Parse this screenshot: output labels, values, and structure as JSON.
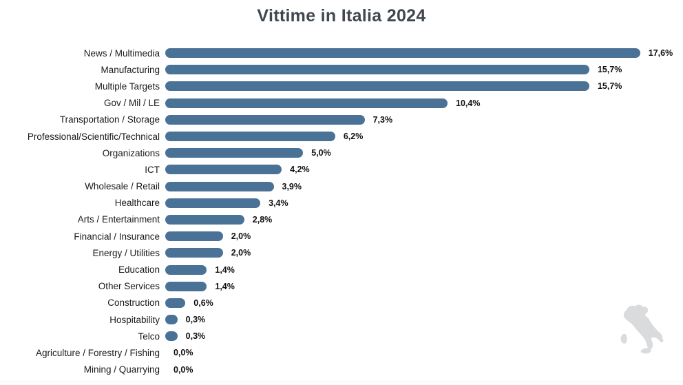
{
  "title": "Vittime in Italia 2024",
  "chart_data": {
    "type": "bar",
    "orientation": "horizontal",
    "title": "Vittime in Italia 2024",
    "categories": [
      "News / Multimedia",
      "Manufacturing",
      "Multiple Targets",
      "Gov / Mil / LE",
      "Transportation / Storage",
      "Professional/Scientific/Technical",
      "Organizations",
      "ICT",
      "Wholesale / Retail",
      "Healthcare",
      "Arts / Entertainment",
      "Financial / Insurance",
      "Energy / Utilities",
      "Education",
      "Other Services",
      "Construction",
      "Hospitability",
      "Telco",
      "Agriculture / Forestry / Fishing",
      "Mining / Quarrying"
    ],
    "values": [
      17.6,
      15.7,
      15.7,
      10.4,
      7.3,
      6.2,
      5.0,
      4.2,
      3.9,
      3.4,
      2.8,
      2.0,
      2.0,
      1.4,
      1.4,
      0.6,
      0.3,
      0.3,
      0.0,
      0.0
    ],
    "value_labels": [
      "17,6%",
      "15,7%",
      "15,7%",
      "10,4%",
      "7,3%",
      "6,2%",
      "5,0%",
      "4,2%",
      "3,9%",
      "3,4%",
      "2,8%",
      "2,0%",
      "2,0%",
      "1,4%",
      "1,4%",
      "0,6%",
      "0,3%",
      "0,3%",
      "0,0%",
      "0,0%"
    ],
    "xlim": [
      0,
      18
    ],
    "grid": false,
    "legend": false,
    "bar_color": "#4A7296",
    "value_label_color": "#111111",
    "category_label_color": "#1a1a1a",
    "title_color": "#40474f"
  },
  "decorations": {
    "italy_map_icon": "italy-map-silhouette",
    "map_color": "#d9dbdc"
  }
}
